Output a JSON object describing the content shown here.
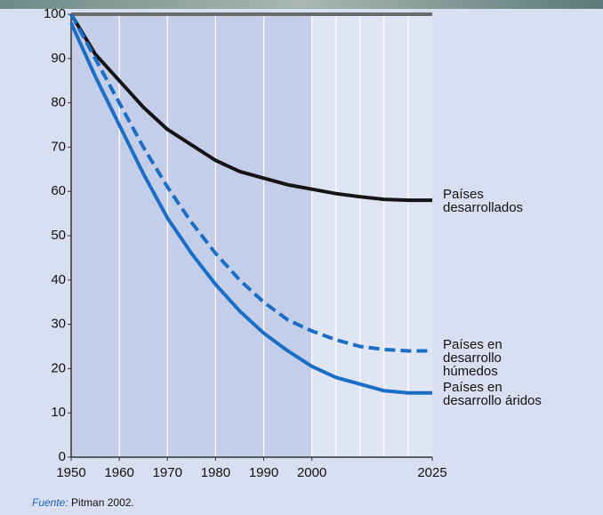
{
  "chart_data": {
    "type": "line",
    "x": [
      1950,
      1955,
      1960,
      1965,
      1970,
      1975,
      1980,
      1985,
      1990,
      1995,
      2000,
      2005,
      2010,
      2015,
      2020,
      2025
    ],
    "series": [
      {
        "name": "Países desarrollados",
        "color": "#151515",
        "dash": false,
        "values": [
          100,
          91,
          85,
          79,
          74,
          70.5,
          67,
          64.5,
          63,
          61.5,
          60.5,
          59.5,
          58.8,
          58.2,
          58,
          58
        ]
      },
      {
        "name": "Países en desarrollo húmedos",
        "color": "#1b6ec6",
        "dash": true,
        "values": [
          100,
          90,
          80,
          70,
          61,
          53,
          46,
          40,
          35,
          31,
          28.5,
          26.5,
          25,
          24.3,
          24,
          24
        ]
      },
      {
        "name": "Países en desarrollo áridos",
        "color": "#1b6ec6",
        "dash": false,
        "values": [
          98,
          86,
          75,
          64,
          54,
          46,
          39,
          33,
          28,
          24,
          20.5,
          18,
          16.5,
          15,
          14.5,
          14.5
        ]
      }
    ],
    "xlim": [
      1950,
      2025
    ],
    "ylim": [
      0,
      100
    ],
    "xticks": [
      1950,
      1960,
      1970,
      1980,
      1990,
      2000,
      2025
    ],
    "xgrid": [
      1960,
      1970,
      1980,
      1990,
      2000,
      2005,
      2010,
      2015,
      2020
    ],
    "yticks": [
      0,
      10,
      20,
      30,
      40,
      50,
      60,
      70,
      80,
      90,
      100
    ],
    "projection_from": 2000,
    "source_label": "Fuente:",
    "source": "Pitman 2002."
  }
}
